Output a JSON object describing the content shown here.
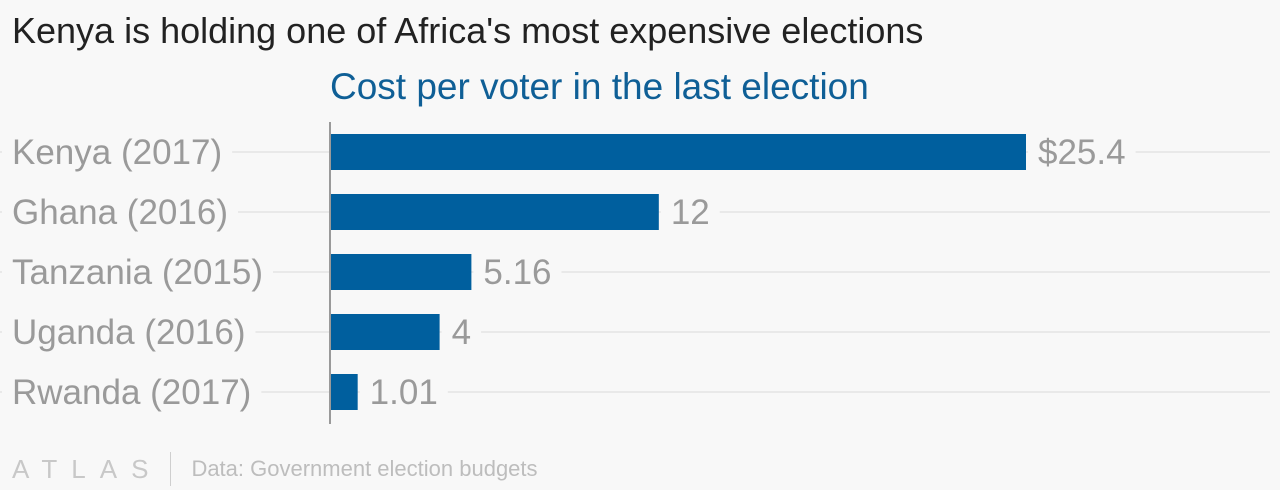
{
  "title": "Kenya is holding one of Africa's most expensive elections",
  "subtitle": "Cost per voter in the last election",
  "chart_data": {
    "type": "bar",
    "orientation": "horizontal",
    "categories": [
      "Kenya (2017)",
      "Ghana (2016)",
      "Tanzania (2015)",
      "Uganda (2016)",
      "Rwanda (2017)"
    ],
    "values": [
      25.4,
      12,
      5.16,
      4,
      1.01
    ],
    "value_labels": [
      "$25.4",
      "12",
      "5.16",
      "4",
      "1.01"
    ],
    "xlim": [
      0,
      25.4
    ],
    "grid": true,
    "bar_color": "#005f9e"
  },
  "footer": {
    "logo": "ATLAS",
    "source": "Data: Government election budgets"
  }
}
